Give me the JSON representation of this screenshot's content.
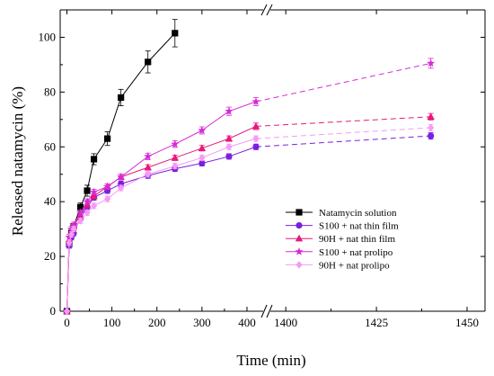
{
  "chart_data": {
    "type": "line",
    "xlabel": "Time (min)",
    "ylabel": "Released natamycin (%)",
    "ylim": [
      0,
      110
    ],
    "x_ticks_left": [
      0,
      100,
      200,
      300,
      400
    ],
    "x_ticks_right": [
      1400,
      1425,
      1450
    ],
    "x_break": [
      430,
      1395
    ],
    "y_ticks": [
      0,
      20,
      40,
      60,
      80,
      100
    ],
    "grid": false,
    "legend_position": "bottom-right",
    "series": [
      {
        "name": "Natamycin solution",
        "color": "#000000",
        "marker": "square",
        "x": [
          0,
          5,
          10,
          15,
          30,
          45,
          60,
          90,
          120,
          180,
          240
        ],
        "y": [
          0,
          24.5,
          28.5,
          31,
          38,
          44,
          55.5,
          63,
          78,
          91,
          101.5
        ],
        "err": [
          0,
          1,
          1,
          1,
          1.5,
          2,
          2,
          2.5,
          3,
          4,
          5
        ]
      },
      {
        "name": "S100 + nat thin film",
        "color": "#7b1fe0",
        "marker": "circle",
        "x": [
          0,
          5,
          10,
          15,
          30,
          45,
          60,
          90,
          120,
          180,
          240,
          300,
          360,
          420,
          1440
        ],
        "y": [
          0,
          24,
          27,
          28.5,
          34,
          38,
          41.5,
          44,
          46.5,
          49.5,
          52,
          54,
          56.5,
          60,
          64
        ],
        "err": [
          0,
          1,
          1,
          1,
          1,
          1,
          1,
          1,
          1,
          1,
          1,
          1,
          1,
          1,
          1.2
        ]
      },
      {
        "name": "90H + nat thin film",
        "color": "#e8187a",
        "marker": "triangle",
        "x": [
          0,
          5,
          10,
          15,
          30,
          45,
          60,
          90,
          120,
          180,
          240,
          300,
          360,
          420,
          1440
        ],
        "y": [
          0,
          26,
          29,
          31,
          35,
          39,
          42,
          45.5,
          49,
          52.5,
          56,
          59.5,
          63,
          67.5,
          71
        ],
        "err": [
          0,
          1,
          1,
          1,
          1,
          1,
          1,
          1,
          1,
          1,
          1,
          1,
          1,
          1.2,
          1.2
        ]
      },
      {
        "name": "S100 + nat prolipo",
        "color": "#d62bd6",
        "marker": "star",
        "x": [
          0,
          5,
          10,
          15,
          30,
          45,
          60,
          90,
          120,
          180,
          240,
          300,
          360,
          420,
          1440
        ],
        "y": [
          0,
          27,
          30,
          31.5,
          36,
          40,
          43.5,
          45.5,
          49,
          56.5,
          61,
          66,
          73,
          76.5,
          90.5
        ],
        "err": [
          0,
          1,
          1,
          1,
          1,
          1,
          1,
          1,
          1,
          1.2,
          1.2,
          1.3,
          1.5,
          1.5,
          1.8
        ]
      },
      {
        "name": "90H + nat prolipo",
        "color": "#f59af5",
        "marker": "diamond",
        "x": [
          0,
          5,
          10,
          15,
          30,
          45,
          60,
          90,
          120,
          180,
          240,
          300,
          360,
          420,
          1440
        ],
        "y": [
          0,
          25,
          28,
          30,
          33,
          36,
          38.5,
          41,
          45,
          50,
          53,
          56,
          60,
          63,
          67
        ],
        "err": [
          0,
          1,
          1,
          1,
          1,
          1,
          1,
          1,
          1,
          1,
          1,
          1,
          1,
          1,
          1.2
        ]
      }
    ]
  }
}
